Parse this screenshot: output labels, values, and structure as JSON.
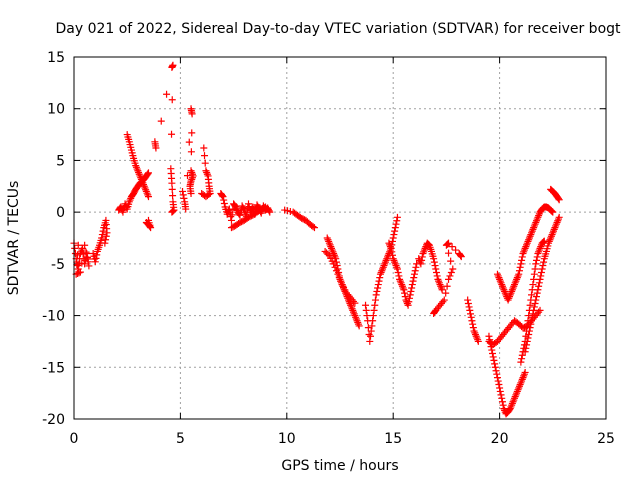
{
  "chart_data": {
    "type": "scatter",
    "title": "Day 021 of 2022, Sidereal Day-to-day VTEC variation (SDTVAR) for receiver bogt",
    "xlabel": "GPS time / hours",
    "ylabel": "SDTVAR / TECUs",
    "xlim": [
      0,
      25
    ],
    "ylim": [
      -20,
      15
    ],
    "xticks": [
      "0",
      "5",
      "10",
      "15",
      "20",
      "25"
    ],
    "yticks": [
      "15",
      "10",
      "5",
      "0",
      "-5",
      "-10",
      "-15",
      "-20"
    ],
    "grid": true,
    "marker": "+",
    "color": "#ff0000",
    "segments": [
      {
        "points": [
          [
            0.0,
            -3.0
          ],
          [
            0.1,
            -4.5
          ],
          [
            0.2,
            -5.5
          ],
          [
            0.3,
            -4.0
          ],
          [
            0.4,
            -3.5
          ],
          [
            0.5,
            -5.0
          ],
          [
            0.6,
            -4.0
          ],
          [
            0.7,
            -5.2
          ],
          [
            0.5,
            -3.2
          ],
          [
            0.3,
            -5.8
          ],
          [
            0.1,
            -6.0
          ],
          [
            0.2,
            -3.2
          ]
        ]
      },
      {
        "points": [
          [
            0.9,
            -4.0
          ],
          [
            1.0,
            -4.8
          ],
          [
            1.1,
            -3.8
          ],
          [
            1.2,
            -3.2
          ],
          [
            1.3,
            -2.5
          ],
          [
            1.4,
            -1.5
          ],
          [
            1.5,
            -0.8
          ],
          [
            1.55,
            -2.0
          ],
          [
            1.45,
            -3.0
          ]
        ]
      },
      {
        "points": [
          [
            2.1,
            0.2
          ],
          [
            2.2,
            0.5
          ],
          [
            2.3,
            0.0
          ],
          [
            2.4,
            0.8
          ],
          [
            2.5,
            0.3
          ],
          [
            2.6,
            1.0
          ],
          [
            2.7,
            1.5
          ],
          [
            2.8,
            1.8
          ],
          [
            2.9,
            2.2
          ],
          [
            3.0,
            2.5
          ],
          [
            3.1,
            2.8
          ],
          [
            3.2,
            3.0
          ],
          [
            3.3,
            3.2
          ],
          [
            3.4,
            3.5
          ],
          [
            3.5,
            3.8
          ]
        ]
      },
      {
        "points": [
          [
            2.5,
            7.5
          ],
          [
            2.6,
            6.8
          ],
          [
            2.7,
            6.0
          ],
          [
            2.8,
            5.2
          ],
          [
            2.9,
            4.5
          ],
          [
            3.0,
            4.0
          ],
          [
            3.1,
            3.5
          ],
          [
            3.2,
            3.0
          ],
          [
            3.3,
            2.5
          ],
          [
            3.4,
            2.0
          ],
          [
            3.5,
            1.5
          ]
        ]
      },
      {
        "points": [
          [
            3.4,
            -1.0
          ],
          [
            3.5,
            -1.2
          ],
          [
            3.6,
            -1.5
          ],
          [
            3.5,
            -0.8
          ]
        ]
      },
      {
        "points": [
          [
            3.8,
            6.8
          ],
          [
            3.85,
            6.2
          ],
          [
            4.6,
            14.0
          ],
          [
            4.65,
            14.2
          ],
          [
            4.55,
            4.2
          ],
          [
            4.6,
            2.8
          ],
          [
            4.65,
            1.0
          ],
          [
            4.7,
            0.2
          ],
          [
            4.6,
            0.0
          ]
        ]
      },
      {
        "points": [
          [
            5.1,
            2.0
          ],
          [
            5.2,
            1.0
          ],
          [
            5.25,
            0.3
          ],
          [
            5.5,
            10.0
          ],
          [
            5.55,
            9.5
          ],
          [
            5.5,
            4.0
          ],
          [
            5.6,
            3.5
          ],
          [
            5.5,
            3.0
          ],
          [
            5.45,
            2.5
          ],
          [
            5.5,
            1.8
          ]
        ]
      },
      {
        "points": [
          [
            6.1,
            6.2
          ],
          [
            6.2,
            4.0
          ],
          [
            6.3,
            3.5
          ],
          [
            6.35,
            2.5
          ],
          [
            6.4,
            1.8
          ],
          [
            6.2,
            1.5
          ],
          [
            6.0,
            1.8
          ]
        ]
      },
      {
        "points": [
          [
            6.9,
            1.8
          ],
          [
            7.0,
            1.5
          ],
          [
            7.1,
            0.5
          ],
          [
            7.2,
            -0.2
          ],
          [
            7.3,
            0.3
          ],
          [
            7.4,
            -0.8
          ],
          [
            7.5,
            0.8
          ],
          [
            7.6,
            0.5
          ],
          [
            7.7,
            0.0
          ],
          [
            7.8,
            -0.3
          ],
          [
            7.9,
            0.6
          ],
          [
            8.0,
            0.2
          ],
          [
            8.1,
            -0.4
          ],
          [
            8.2,
            0.8
          ],
          [
            8.3,
            0.0
          ],
          [
            8.4,
            0.5
          ],
          [
            8.5,
            -0.2
          ],
          [
            8.6,
            0.7
          ],
          [
            8.7,
            0.3
          ],
          [
            8.8,
            -0.1
          ],
          [
            8.9,
            0.6
          ],
          [
            9.0,
            0.2
          ],
          [
            9.1,
            0.4
          ],
          [
            9.2,
            0.0
          ]
        ]
      },
      {
        "points": [
          [
            7.4,
            -1.5
          ],
          [
            7.6,
            -1.3
          ],
          [
            7.8,
            -1.0
          ],
          [
            8.0,
            -0.8
          ],
          [
            8.2,
            -0.5
          ],
          [
            8.4,
            -0.3
          ],
          [
            8.6,
            0.0
          ],
          [
            8.8,
            0.3
          ],
          [
            9.0,
            0.5
          ]
        ]
      },
      {
        "points": [
          [
            9.9,
            0.2
          ],
          [
            10.3,
            0.0
          ],
          [
            10.5,
            -0.3
          ],
          [
            10.7,
            -0.6
          ],
          [
            10.9,
            -0.8
          ],
          [
            11.1,
            -1.2
          ],
          [
            11.3,
            -1.5
          ]
        ]
      },
      {
        "points": [
          [
            11.9,
            -2.5
          ],
          [
            12.0,
            -3.0
          ],
          [
            12.1,
            -3.5
          ],
          [
            12.2,
            -4.0
          ],
          [
            12.3,
            -4.5
          ],
          [
            12.4,
            -5.5
          ],
          [
            12.5,
            -6.5
          ],
          [
            12.6,
            -7.0
          ],
          [
            12.7,
            -7.5
          ],
          [
            12.8,
            -8.0
          ],
          [
            12.9,
            -8.5
          ],
          [
            13.0,
            -9.0
          ],
          [
            13.1,
            -9.5
          ],
          [
            13.2,
            -10.0
          ],
          [
            13.3,
            -10.5
          ],
          [
            13.4,
            -11.0
          ]
        ]
      },
      {
        "points": [
          [
            11.8,
            -3.8
          ],
          [
            12.0,
            -4.2
          ],
          [
            12.2,
            -5.0
          ],
          [
            12.4,
            -6.0
          ],
          [
            12.6,
            -7.0
          ],
          [
            12.8,
            -7.8
          ],
          [
            13.0,
            -8.3
          ],
          [
            13.2,
            -8.8
          ]
        ]
      },
      {
        "points": [
          [
            13.7,
            -9.0
          ],
          [
            13.8,
            -10.5
          ],
          [
            13.9,
            -12.5
          ],
          [
            14.0,
            -11.0
          ],
          [
            14.1,
            -9.5
          ],
          [
            14.2,
            -8.0
          ],
          [
            14.3,
            -7.0
          ],
          [
            14.4,
            -6.0
          ],
          [
            14.5,
            -5.5
          ],
          [
            14.6,
            -5.0
          ],
          [
            14.7,
            -4.5
          ],
          [
            14.8,
            -4.0
          ],
          [
            14.9,
            -3.5
          ],
          [
            15.0,
            -2.5
          ],
          [
            15.1,
            -1.5
          ],
          [
            15.2,
            -0.5
          ]
        ]
      },
      {
        "points": [
          [
            14.8,
            -3.0
          ],
          [
            14.9,
            -3.5
          ],
          [
            15.0,
            -4.5
          ],
          [
            15.1,
            -5.0
          ],
          [
            15.2,
            -5.5
          ],
          [
            15.3,
            -6.5
          ],
          [
            15.4,
            -7.0
          ],
          [
            15.5,
            -7.5
          ],
          [
            15.6,
            -8.5
          ],
          [
            15.7,
            -9.0
          ],
          [
            15.8,
            -8.0
          ],
          [
            15.9,
            -7.0
          ],
          [
            16.0,
            -6.0
          ],
          [
            16.1,
            -5.0
          ]
        ]
      },
      {
        "points": [
          [
            16.2,
            -4.5
          ],
          [
            16.3,
            -5.0
          ],
          [
            16.4,
            -4.0
          ],
          [
            16.5,
            -3.5
          ],
          [
            16.6,
            -3.0
          ],
          [
            16.7,
            -3.2
          ],
          [
            16.8,
            -3.8
          ],
          [
            16.9,
            -4.5
          ],
          [
            17.0,
            -5.5
          ],
          [
            17.1,
            -6.5
          ],
          [
            17.2,
            -7.0
          ],
          [
            17.3,
            -7.5
          ]
        ]
      },
      {
        "points": [
          [
            16.9,
            -9.8
          ],
          [
            17.0,
            -9.5
          ],
          [
            17.2,
            -9.0
          ],
          [
            17.4,
            -8.5
          ],
          [
            17.6,
            -6.5
          ],
          [
            17.8,
            -5.5
          ],
          [
            17.5,
            -3.2
          ],
          [
            17.6,
            -3.0
          ],
          [
            18.1,
            -4.0
          ],
          [
            18.2,
            -4.3
          ]
        ]
      },
      {
        "points": [
          [
            18.5,
            -8.5
          ],
          [
            18.6,
            -9.5
          ],
          [
            18.7,
            -10.5
          ],
          [
            18.8,
            -11.5
          ],
          [
            18.9,
            -12.0
          ],
          [
            19.0,
            -12.5
          ]
        ]
      },
      {
        "points": [
          [
            19.5,
            -12.0
          ],
          [
            19.6,
            -13.0
          ],
          [
            19.7,
            -14.0
          ],
          [
            19.8,
            -15.0
          ],
          [
            19.9,
            -16.0
          ],
          [
            20.0,
            -17.0
          ],
          [
            20.1,
            -18.0
          ],
          [
            20.2,
            -19.0
          ],
          [
            20.3,
            -19.5
          ],
          [
            20.4,
            -19.3
          ],
          [
            20.5,
            -19.0
          ],
          [
            20.6,
            -18.5
          ],
          [
            20.7,
            -18.0
          ],
          [
            20.8,
            -17.5
          ],
          [
            20.9,
            -17.0
          ],
          [
            21.0,
            -16.5
          ],
          [
            21.1,
            -16.0
          ],
          [
            21.2,
            -15.5
          ]
        ]
      },
      {
        "points": [
          [
            19.5,
            -12.5
          ],
          [
            19.7,
            -12.8
          ],
          [
            19.9,
            -12.5
          ],
          [
            20.1,
            -12.0
          ],
          [
            20.3,
            -11.5
          ],
          [
            20.5,
            -11.0
          ],
          [
            20.7,
            -10.5
          ],
          [
            20.9,
            -10.8
          ],
          [
            21.1,
            -11.2
          ],
          [
            21.3,
            -11.0
          ],
          [
            21.5,
            -10.5
          ],
          [
            21.7,
            -10.0
          ],
          [
            21.9,
            -9.5
          ]
        ]
      },
      {
        "points": [
          [
            19.9,
            -6.0
          ],
          [
            20.0,
            -6.5
          ],
          [
            20.1,
            -7.0
          ],
          [
            20.2,
            -7.5
          ],
          [
            20.3,
            -8.0
          ],
          [
            20.4,
            -8.5
          ],
          [
            20.5,
            -8.0
          ],
          [
            20.6,
            -7.5
          ],
          [
            20.7,
            -7.0
          ],
          [
            20.8,
            -6.5
          ],
          [
            20.9,
            -6.0
          ],
          [
            21.0,
            -5.0
          ],
          [
            21.1,
            -4.0
          ],
          [
            21.2,
            -3.5
          ],
          [
            21.3,
            -3.0
          ],
          [
            21.4,
            -2.5
          ],
          [
            21.5,
            -2.0
          ],
          [
            21.6,
            -1.5
          ],
          [
            21.7,
            -1.0
          ],
          [
            21.8,
            -0.5
          ],
          [
            21.9,
            0.0
          ],
          [
            22.0,
            0.3
          ],
          [
            22.1,
            0.5
          ],
          [
            22.2,
            0.5
          ],
          [
            22.3,
            0.4
          ],
          [
            22.4,
            0.2
          ],
          [
            22.5,
            0.0
          ]
        ]
      },
      {
        "points": [
          [
            21.2,
            -13.5
          ],
          [
            21.3,
            -12.5
          ],
          [
            21.4,
            -11.5
          ],
          [
            21.5,
            -10.5
          ],
          [
            21.6,
            -9.5
          ],
          [
            21.7,
            -8.5
          ],
          [
            21.8,
            -7.5
          ],
          [
            21.9,
            -6.5
          ],
          [
            22.0,
            -5.5
          ],
          [
            22.1,
            -4.5
          ],
          [
            22.2,
            -3.8
          ],
          [
            22.3,
            -3.0
          ],
          [
            22.4,
            -2.5
          ],
          [
            22.5,
            -2.0
          ],
          [
            22.6,
            -1.5
          ],
          [
            22.7,
            -1.0
          ],
          [
            22.8,
            -0.5
          ]
        ]
      },
      {
        "points": [
          [
            21.0,
            -14.5
          ],
          [
            21.1,
            -13.5
          ],
          [
            21.2,
            -12.5
          ],
          [
            21.3,
            -11.0
          ],
          [
            21.4,
            -9.5
          ],
          [
            21.5,
            -8.0
          ],
          [
            21.6,
            -6.5
          ],
          [
            21.7,
            -5.0
          ],
          [
            21.8,
            -4.0
          ],
          [
            21.9,
            -3.5
          ],
          [
            22.0,
            -3.0
          ],
          [
            22.1,
            -2.8
          ]
        ]
      },
      {
        "points": [
          [
            22.4,
            2.2
          ],
          [
            22.5,
            2.0
          ],
          [
            22.6,
            1.8
          ],
          [
            22.7,
            1.5
          ],
          [
            22.8,
            1.2
          ]
        ]
      }
    ]
  }
}
